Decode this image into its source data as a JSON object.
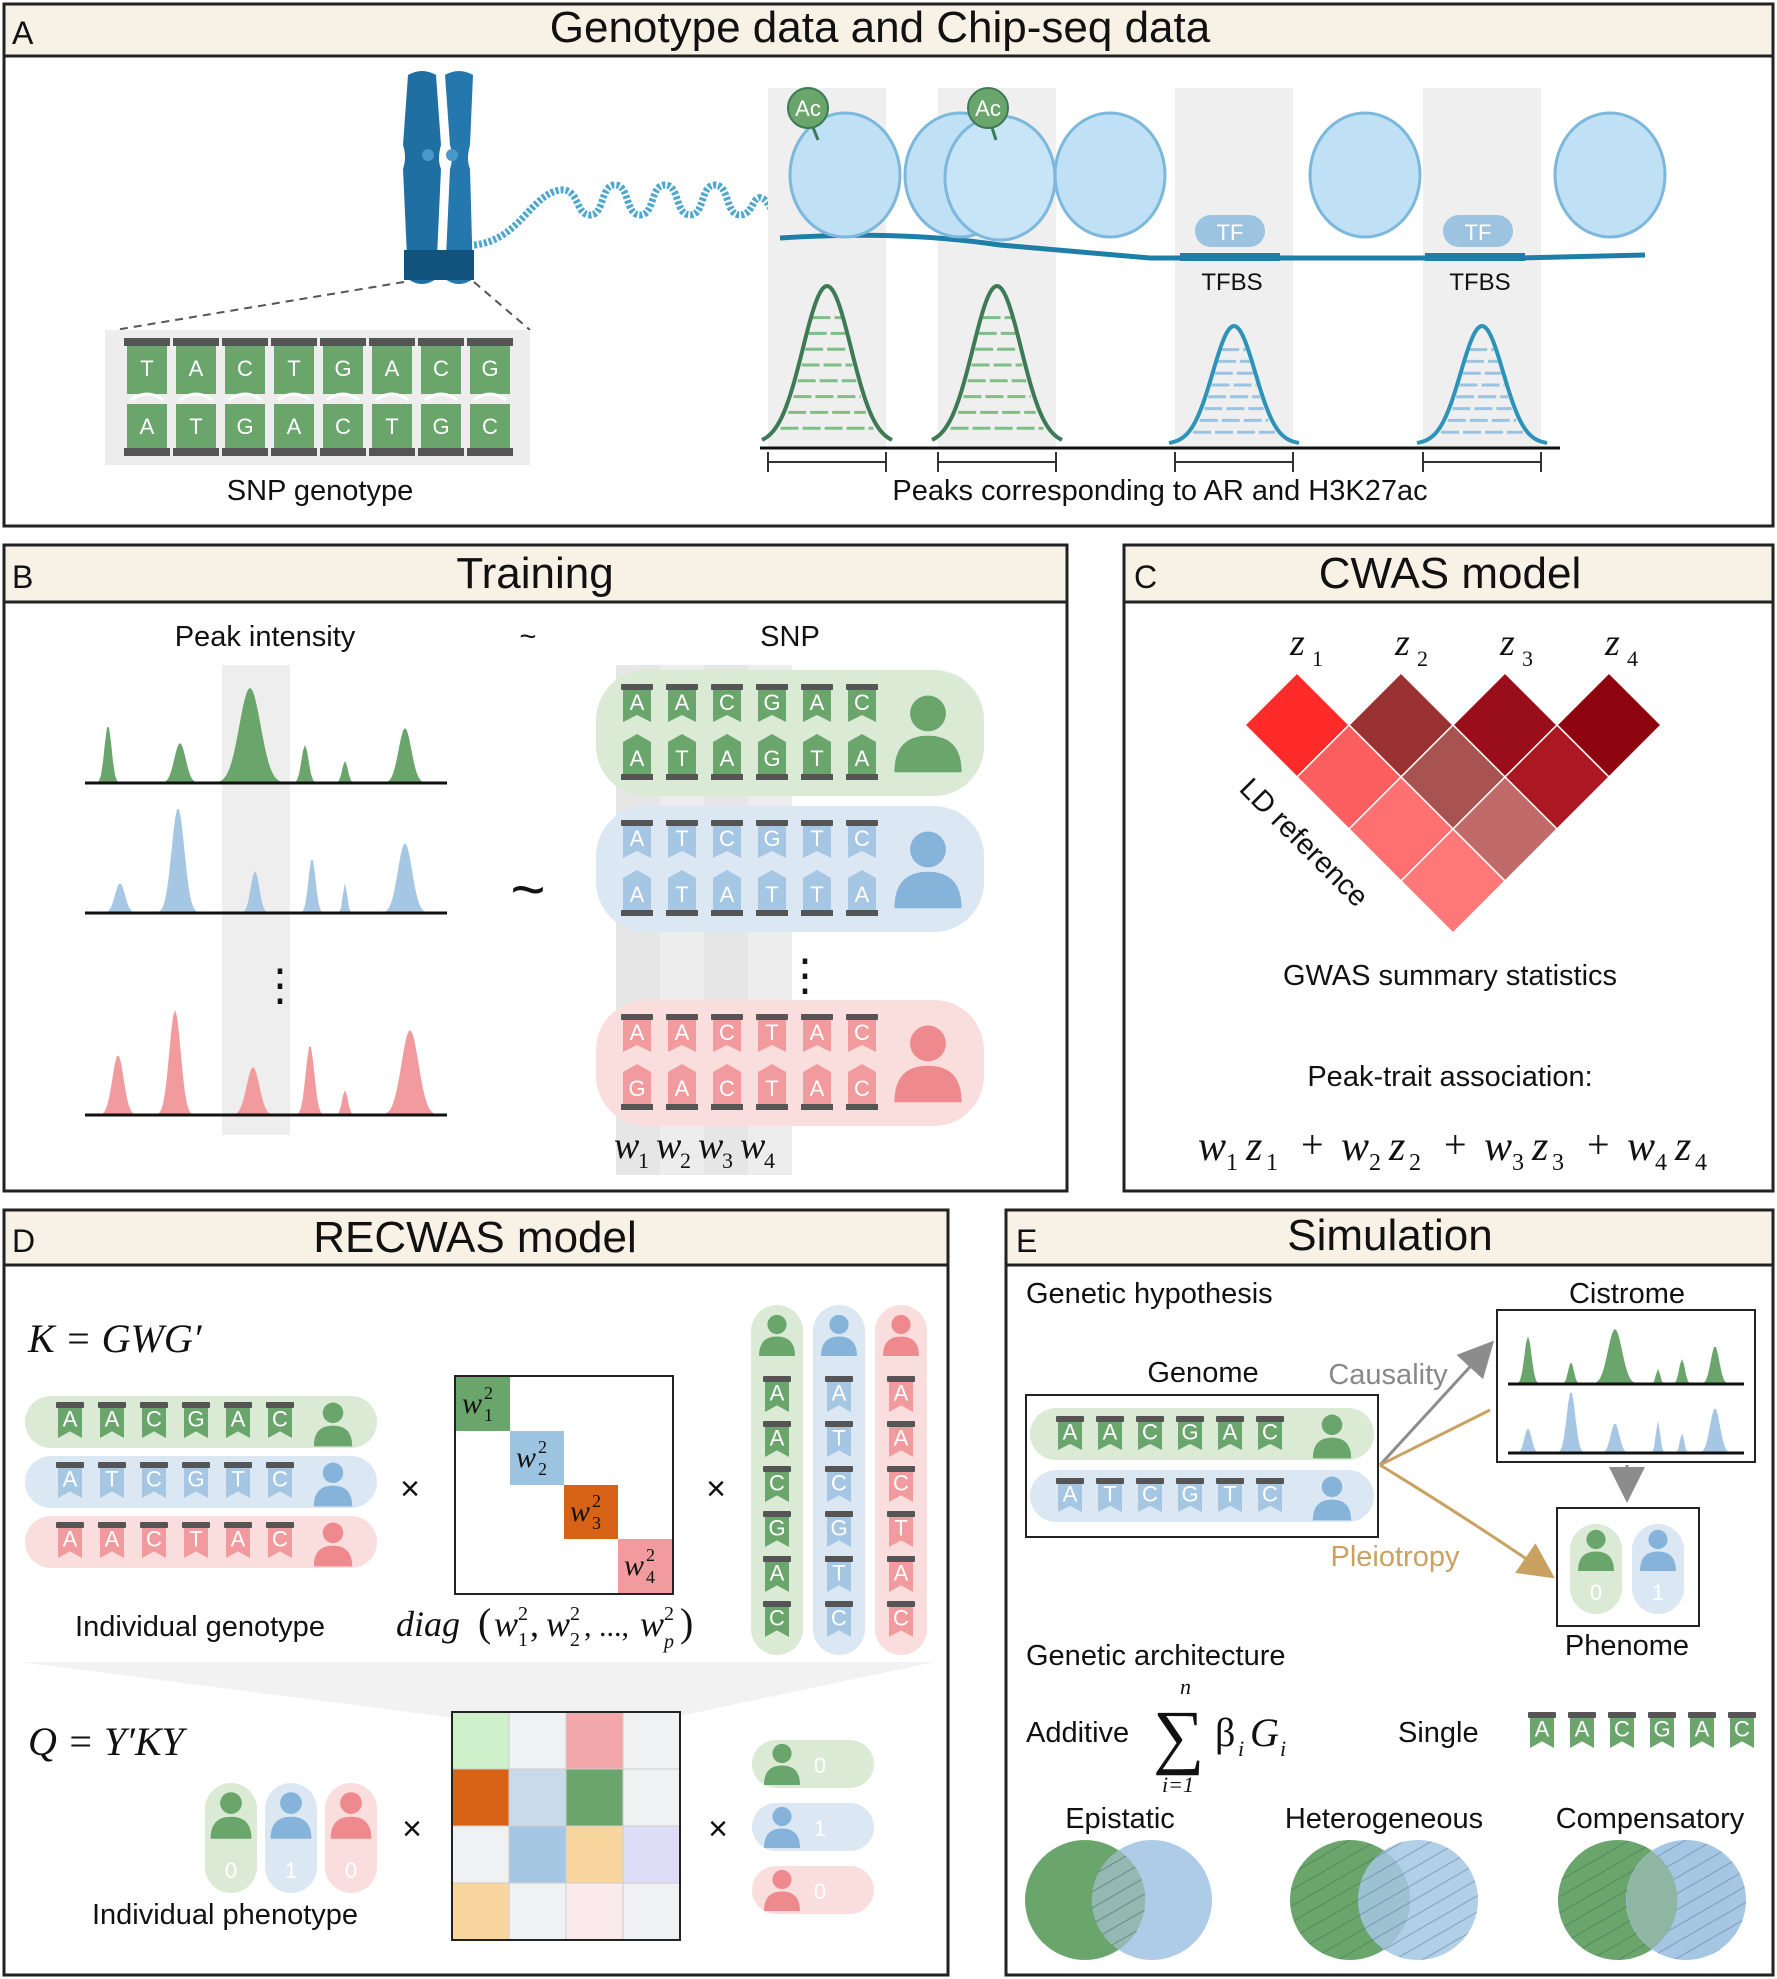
{
  "panels": {
    "a": {
      "letter": "A",
      "title": "Genotype data and Chip-seq data"
    },
    "b": {
      "letter": "B",
      "title": "Training"
    },
    "c": {
      "letter": "C",
      "title": "CWAS model"
    },
    "d": {
      "letter": "D",
      "title": "RECWAS model"
    },
    "e": {
      "letter": "E",
      "title": "Simulation"
    }
  },
  "a": {
    "ac_label": "Ac",
    "tf_label": "TF",
    "tfbs_label": "TFBS",
    "snp_top": [
      "T",
      "A",
      "C",
      "T",
      "G",
      "A",
      "C",
      "G"
    ],
    "snp_bottom": [
      "A",
      "T",
      "G",
      "A",
      "C",
      "T",
      "G",
      "C"
    ],
    "snp_caption": "SNP genotype",
    "peaks_caption": "Peaks corresponding to AR and H3K27ac"
  },
  "b": {
    "peak_intensity": "Peak intensity",
    "tilde": "~",
    "snp": "SNP",
    "rows": [
      {
        "top": [
          "A",
          "A",
          "C",
          "G",
          "A",
          "C"
        ],
        "bottom": [
          "A",
          "T",
          "A",
          "G",
          "T",
          "A"
        ]
      },
      {
        "top": [
          "A",
          "T",
          "C",
          "G",
          "T",
          "C"
        ],
        "bottom": [
          "A",
          "T",
          "A",
          "T",
          "T",
          "A"
        ]
      },
      {
        "top": [
          "A",
          "A",
          "C",
          "T",
          "A",
          "C"
        ],
        "bottom": [
          "G",
          "A",
          "C",
          "T",
          "A",
          "C"
        ]
      }
    ],
    "dots": "⋮",
    "w": "w",
    "subs": [
      "1",
      "2",
      "3",
      "4"
    ]
  },
  "c": {
    "z": "z",
    "subs": [
      "1",
      "2",
      "3",
      "4"
    ],
    "ld_reference": "LD reference",
    "gwas": "GWAS summary statistics",
    "assoc_label": "Peak-trait association:",
    "plus": "+"
  },
  "d": {
    "k_formula": "K = GWG′",
    "genotype_rows": [
      [
        "A",
        "A",
        "C",
        "G",
        "A",
        "C"
      ],
      [
        "A",
        "T",
        "C",
        "G",
        "T",
        "C"
      ],
      [
        "A",
        "A",
        "C",
        "T",
        "A",
        "C"
      ]
    ],
    "times": "×",
    "w": "w",
    "sq": "2",
    "subs": [
      "1",
      "2",
      "3",
      "4"
    ],
    "diag_prefix": "diag",
    "diag_mid": ", ...,",
    "diag_p": "p",
    "paren_open": "(",
    "paren_close": ")",
    "comma": ",",
    "individual_genotype": "Individual genotype",
    "q_formula": "Q = Y′KY",
    "phenotypes": [
      "0",
      "1",
      "0"
    ],
    "individual_phenotype": "Individual phenotype"
  },
  "e": {
    "genetic_hypothesis": "Genetic hypothesis",
    "genome": "Genome",
    "cistrome": "Cistrome",
    "causality": "Causality",
    "pleiotropy": "Pleiotropy",
    "phenome": "Phenome",
    "genome_rows": [
      [
        "A",
        "A",
        "C",
        "G",
        "A",
        "C"
      ],
      [
        "A",
        "T",
        "C",
        "G",
        "T",
        "C"
      ]
    ],
    "phenome_values": [
      "0",
      "1"
    ],
    "genetic_architecture": "Genetic architecture",
    "additive": "Additive",
    "sum_top": "n",
    "sum_bottom": "i=1",
    "sum_sign": "∑",
    "beta": "β",
    "i": "i",
    "g": "G",
    "single": "Single",
    "single_row": [
      "A",
      "A",
      "C",
      "G",
      "A",
      "C"
    ],
    "epistatic": "Epistatic",
    "heterogeneous": "Heterogeneous",
    "compensatory": "Compensatory"
  },
  "colors": {
    "green": "#6aa56c",
    "blue": "#a5c7e4",
    "red": "#f29b9e",
    "orange": "#d86317",
    "panel_header": "#f7f1e6",
    "chromosome": "#1f6fa3"
  }
}
